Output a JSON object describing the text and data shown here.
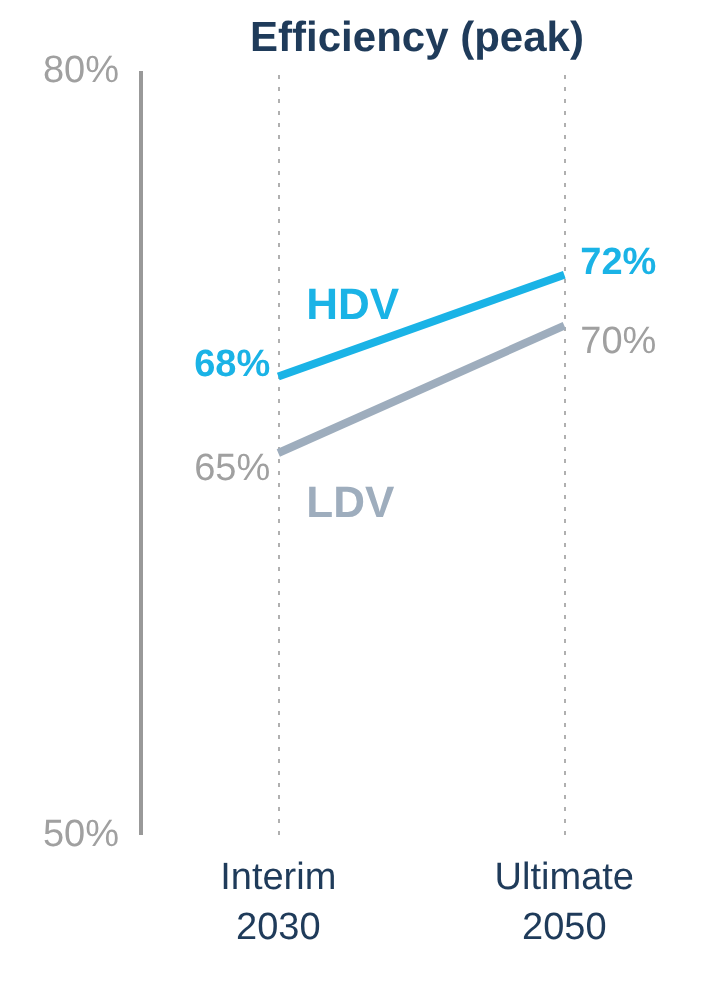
{
  "chart_data": {
    "type": "line",
    "title": "Efficiency (peak)",
    "categories": [
      "Interim\n2030",
      "Ultimate\n2050"
    ],
    "series": [
      {
        "name": "HDV",
        "color": "#1ab3e6",
        "values": [
          68,
          72
        ],
        "value_labels": [
          "68%",
          "72%"
        ]
      },
      {
        "name": "LDV",
        "color": "#9eadbd",
        "values": [
          65,
          70
        ],
        "value_labels": [
          "65%",
          "70%"
        ]
      }
    ],
    "ylim": [
      50,
      80
    ],
    "yticks": [
      {
        "value": 50,
        "label": "50%"
      },
      {
        "value": 80,
        "label": "80%"
      }
    ],
    "grid": "x",
    "marker": "none",
    "line_style": "solid"
  }
}
